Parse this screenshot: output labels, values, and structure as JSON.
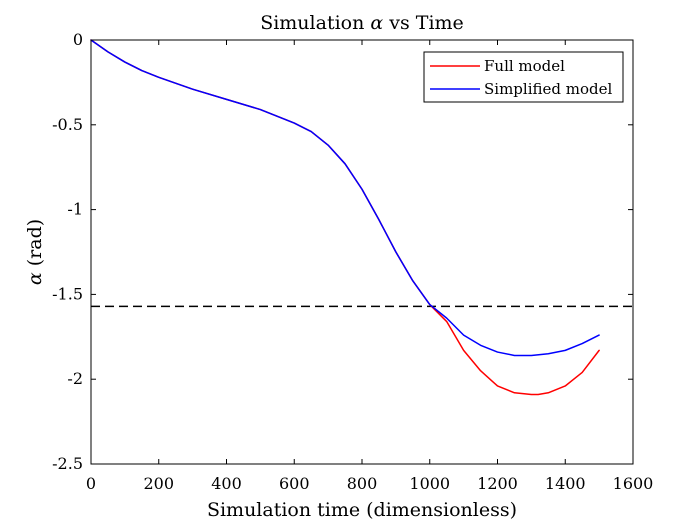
{
  "chart_data": {
    "type": "line",
    "title_prefix": "Simulation ",
    "title_symbol": "α",
    "title_suffix": " vs Time",
    "xlabel": "Simulation time (dimensionless)",
    "ylabel_symbol": "α",
    "ylabel_suffix": " (rad)",
    "xlim": [
      0,
      1600
    ],
    "ylim": [
      -2.5,
      0
    ],
    "xticks": [
      0,
      200,
      400,
      600,
      800,
      1000,
      1200,
      1400,
      1600
    ],
    "xtick_labels": [
      "0",
      "200",
      "400",
      "600",
      "800",
      "1000",
      "1200",
      "1400",
      "1600"
    ],
    "yticks": [
      0,
      -0.5,
      -1,
      -1.5,
      -2,
      -2.5
    ],
    "ytick_labels": [
      "0",
      "-0.5",
      "-1",
      "-1.5",
      "-2",
      "-2.5"
    ],
    "grid": false,
    "legend_position": "top-right",
    "reference_line": {
      "y": -1.5708,
      "style": "dashed",
      "color": "#000000"
    },
    "series": [
      {
        "name": "Full model",
        "color": "#ff0000",
        "x": [
          0,
          50,
          100,
          150,
          200,
          300,
          400,
          500,
          600,
          650,
          700,
          750,
          800,
          850,
          900,
          950,
          1000,
          1050,
          1100,
          1150,
          1200,
          1250,
          1300,
          1320,
          1350,
          1400,
          1450,
          1500
        ],
        "y": [
          0,
          -0.07,
          -0.13,
          -0.18,
          -0.22,
          -0.29,
          -0.35,
          -0.41,
          -0.49,
          -0.54,
          -0.62,
          -0.73,
          -0.88,
          -1.06,
          -1.25,
          -1.42,
          -1.56,
          -1.66,
          -1.83,
          -1.95,
          -2.04,
          -2.08,
          -2.09,
          -2.09,
          -2.08,
          -2.04,
          -1.96,
          -1.83
        ]
      },
      {
        "name": "Simplified model",
        "color": "#0000ff",
        "x": [
          0,
          50,
          100,
          150,
          200,
          300,
          400,
          500,
          600,
          650,
          700,
          750,
          800,
          850,
          900,
          950,
          1000,
          1050,
          1100,
          1150,
          1200,
          1250,
          1300,
          1350,
          1400,
          1450,
          1500
        ],
        "y": [
          0,
          -0.07,
          -0.13,
          -0.18,
          -0.22,
          -0.29,
          -0.35,
          -0.41,
          -0.49,
          -0.54,
          -0.62,
          -0.73,
          -0.88,
          -1.06,
          -1.25,
          -1.42,
          -1.56,
          -1.64,
          -1.74,
          -1.8,
          -1.84,
          -1.86,
          -1.86,
          -1.85,
          -1.83,
          -1.79,
          -1.74
        ]
      }
    ]
  }
}
